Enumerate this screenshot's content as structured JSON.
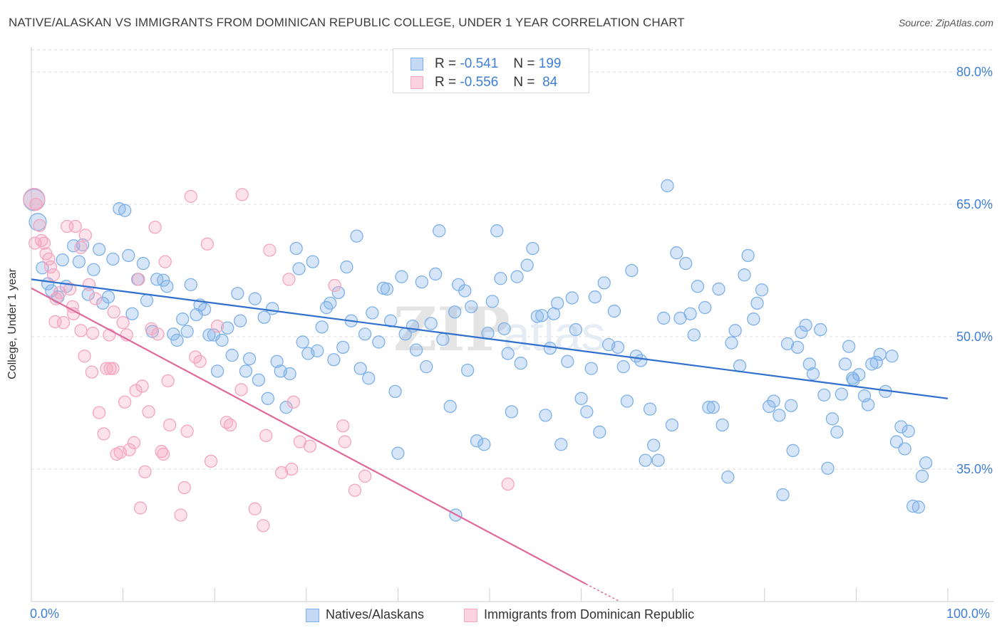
{
  "chart_data": {
    "type": "scatter",
    "title": "NATIVE/ALASKAN VS IMMIGRANTS FROM DOMINICAN REPUBLIC COLLEGE, UNDER 1 YEAR CORRELATION CHART",
    "source": "Source: ZipAtlas.com",
    "ylabel": "College, Under 1 year",
    "xlabel": "",
    "xlim": [
      0,
      100
    ],
    "ylim": [
      20,
      82.5
    ],
    "x_tick_labels": [
      {
        "value": 0,
        "label": "0.0%"
      },
      {
        "value": 100,
        "label": "100.0%"
      }
    ],
    "y_tick_labels": [
      {
        "value": 80,
        "label": "80.0%"
      },
      {
        "value": 65,
        "label": "65.0%"
      },
      {
        "value": 50,
        "label": "50.0%"
      },
      {
        "value": 35,
        "label": "35.0%"
      }
    ],
    "grid": true,
    "watermark": "ZIPatlas",
    "legend_stats": [
      {
        "r_label": "R =",
        "r_value": "-0.541",
        "n_label": "N =",
        "n_value": "199"
      },
      {
        "r_label": "R =",
        "r_value": "-0.556",
        "n_label": "N =",
        "n_value": "84"
      }
    ],
    "series": [
      {
        "name": "Natives/Alaskans",
        "color": "#7eb1e8",
        "line_color": "#2f6fce",
        "trend": {
          "x": [
            0,
            100
          ],
          "y": [
            56.5,
            43.0
          ]
        },
        "points": [
          [
            0.3,
            65.5
          ],
          [
            0.7,
            63.0
          ],
          [
            1.2,
            57.8
          ],
          [
            1.8,
            56.0
          ],
          [
            2.2,
            55.2
          ],
          [
            2.9,
            54.5
          ],
          [
            3.4,
            58.7
          ],
          [
            3.8,
            55.7
          ],
          [
            4.6,
            60.3
          ],
          [
            5.2,
            58.5
          ],
          [
            5.6,
            60.4
          ],
          [
            6.2,
            54.8
          ],
          [
            6.8,
            57.6
          ],
          [
            7.4,
            59.9
          ],
          [
            7.8,
            53.8
          ],
          [
            8.4,
            54.5
          ],
          [
            8.9,
            58.8
          ],
          [
            9.6,
            64.5
          ],
          [
            10.2,
            64.3
          ],
          [
            10.6,
            59.2
          ],
          [
            11.0,
            52.6
          ],
          [
            11.6,
            56.5
          ],
          [
            12.2,
            58.3
          ],
          [
            12.6,
            54.1
          ],
          [
            13.2,
            50.6
          ],
          [
            13.7,
            56.5
          ],
          [
            14.4,
            56.4
          ],
          [
            14.8,
            55.7
          ],
          [
            15.5,
            50.3
          ],
          [
            15.9,
            49.6
          ],
          [
            16.5,
            52.0
          ],
          [
            17.0,
            50.6
          ],
          [
            17.4,
            55.9
          ],
          [
            18.0,
            52.5
          ],
          [
            18.4,
            53.6
          ],
          [
            18.9,
            53.1
          ],
          [
            19.4,
            50.2
          ],
          [
            19.9,
            50.2
          ],
          [
            20.3,
            46.1
          ],
          [
            20.8,
            49.6
          ],
          [
            21.4,
            51.0
          ],
          [
            21.9,
            47.9
          ],
          [
            22.5,
            54.9
          ],
          [
            22.8,
            51.8
          ],
          [
            23.4,
            46.1
          ],
          [
            23.8,
            47.5
          ],
          [
            24.4,
            54.3
          ],
          [
            24.8,
            45.1
          ],
          [
            25.4,
            52.2
          ],
          [
            25.8,
            43.0
          ],
          [
            26.3,
            53.2
          ],
          [
            26.8,
            47.2
          ],
          [
            27.2,
            46.1
          ],
          [
            27.8,
            42.0
          ],
          [
            28.2,
            45.8
          ],
          [
            28.9,
            60.0
          ],
          [
            29.2,
            57.7
          ],
          [
            29.6,
            49.4
          ],
          [
            30.2,
            48.1
          ],
          [
            30.7,
            58.5
          ],
          [
            31.2,
            48.4
          ],
          [
            31.7,
            51.1
          ],
          [
            32.2,
            53.3
          ],
          [
            32.6,
            53.8
          ],
          [
            33.0,
            47.4
          ],
          [
            33.5,
            55.0
          ],
          [
            34.0,
            48.8
          ],
          [
            34.4,
            57.9
          ],
          [
            34.9,
            51.8
          ],
          [
            35.5,
            61.4
          ],
          [
            35.9,
            46.4
          ],
          [
            36.4,
            50.3
          ],
          [
            36.8,
            45.3
          ],
          [
            37.2,
            52.7
          ],
          [
            37.9,
            49.4
          ],
          [
            38.4,
            55.5
          ],
          [
            38.8,
            55.4
          ],
          [
            39.2,
            51.8
          ],
          [
            39.7,
            43.8
          ],
          [
            40.0,
            36.8
          ],
          [
            40.4,
            56.8
          ],
          [
            40.8,
            50.3
          ],
          [
            41.6,
            51.2
          ],
          [
            42.0,
            48.5
          ],
          [
            42.6,
            56.2
          ],
          [
            43.1,
            46.6
          ],
          [
            43.6,
            51.5
          ],
          [
            44.1,
            57.1
          ],
          [
            44.5,
            62.0
          ],
          [
            44.9,
            49.7
          ],
          [
            45.7,
            42.1
          ],
          [
            46.2,
            52.8
          ],
          [
            46.6,
            55.9
          ],
          [
            47.3,
            55.2
          ],
          [
            47.6,
            46.2
          ],
          [
            48.0,
            53.4
          ],
          [
            48.6,
            38.2
          ],
          [
            49.4,
            37.8
          ],
          [
            49.8,
            50.4
          ],
          [
            50.3,
            54.0
          ],
          [
            50.8,
            62.0
          ],
          [
            51.2,
            56.6
          ],
          [
            51.6,
            50.9
          ],
          [
            52.0,
            48.1
          ],
          [
            52.4,
            41.5
          ],
          [
            53.0,
            56.8
          ],
          [
            53.4,
            47.0
          ],
          [
            54.1,
            58.1
          ],
          [
            54.7,
            60.0
          ],
          [
            55.2,
            52.3
          ],
          [
            55.7,
            52.4
          ],
          [
            56.1,
            41.1
          ],
          [
            56.6,
            48.7
          ],
          [
            57.0,
            52.6
          ],
          [
            57.4,
            53.8
          ],
          [
            57.8,
            37.8
          ],
          [
            58.5,
            47.2
          ],
          [
            59.0,
            54.4
          ],
          [
            59.4,
            50.8
          ],
          [
            60.0,
            43.0
          ],
          [
            60.6,
            41.5
          ],
          [
            61.1,
            46.4
          ],
          [
            61.5,
            54.5
          ],
          [
            62.0,
            39.2
          ],
          [
            62.5,
            56.1
          ],
          [
            63.0,
            49.1
          ],
          [
            63.6,
            52.9
          ],
          [
            64.0,
            48.8
          ],
          [
            64.6,
            46.6
          ],
          [
            65.0,
            42.7
          ],
          [
            65.5,
            57.5
          ],
          [
            66.0,
            47.8
          ],
          [
            66.5,
            47.3
          ],
          [
            67.0,
            36.0
          ],
          [
            67.5,
            41.8
          ],
          [
            67.9,
            37.7
          ],
          [
            68.4,
            36.0
          ],
          [
            69.0,
            52.1
          ],
          [
            69.4,
            67.1
          ],
          [
            69.9,
            40.0
          ],
          [
            70.4,
            59.5
          ],
          [
            70.8,
            52.1
          ],
          [
            71.4,
            58.3
          ],
          [
            71.9,
            52.6
          ],
          [
            72.3,
            50.2
          ],
          [
            72.7,
            55.7
          ],
          [
            73.5,
            53.3
          ],
          [
            73.9,
            42.0
          ],
          [
            74.4,
            42.0
          ],
          [
            75.0,
            55.4
          ],
          [
            75.4,
            40.0
          ],
          [
            76.0,
            34.1
          ],
          [
            76.4,
            49.3
          ],
          [
            76.8,
            50.7
          ],
          [
            77.3,
            46.7
          ],
          [
            77.8,
            57.0
          ],
          [
            78.2,
            59.2
          ],
          [
            78.8,
            52.0
          ],
          [
            79.2,
            53.8
          ],
          [
            79.7,
            55.3
          ],
          [
            80.5,
            42.1
          ],
          [
            81.0,
            42.7
          ],
          [
            81.6,
            41.1
          ],
          [
            82.0,
            32.1
          ],
          [
            82.5,
            49.2
          ],
          [
            82.9,
            42.2
          ],
          [
            83.6,
            48.8
          ],
          [
            84.0,
            50.5
          ],
          [
            84.5,
            51.3
          ],
          [
            84.9,
            46.9
          ],
          [
            85.3,
            45.8
          ],
          [
            86.1,
            50.8
          ],
          [
            86.5,
            43.4
          ],
          [
            86.9,
            35.1
          ],
          [
            87.4,
            40.7
          ],
          [
            87.9,
            39.2
          ],
          [
            88.4,
            43.5
          ],
          [
            88.8,
            46.9
          ],
          [
            89.2,
            48.9
          ],
          [
            89.7,
            45.1
          ],
          [
            90.3,
            45.7
          ],
          [
            90.9,
            43.3
          ],
          [
            91.3,
            42.3
          ],
          [
            91.7,
            46.9
          ],
          [
            92.2,
            47.1
          ],
          [
            92.6,
            48.0
          ],
          [
            93.2,
            43.8
          ],
          [
            93.9,
            47.8
          ],
          [
            94.4,
            38.1
          ],
          [
            94.9,
            39.8
          ],
          [
            95.3,
            37.3
          ],
          [
            95.7,
            39.3
          ],
          [
            96.2,
            30.8
          ],
          [
            96.8,
            30.7
          ],
          [
            97.2,
            34.2
          ],
          [
            97.6,
            35.7
          ],
          [
            89.6,
            45.3
          ],
          [
            83.1,
            37.1
          ],
          [
            46.3,
            29.8
          ]
        ]
      },
      {
        "name": "Immigrants from Dominican Republic",
        "color": "#f5a5bf",
        "line_color": "#e0689b",
        "trend": {
          "x": [
            0,
            60.5
          ],
          "y": [
            55.5,
            22.0
          ]
        },
        "trend_dashed": {
          "x": [
            60.5,
            64.2
          ],
          "y": [
            22.0,
            20.0
          ]
        },
        "points": [
          [
            0.3,
            65.6
          ],
          [
            0.5,
            65.0
          ],
          [
            0.9,
            62.6
          ],
          [
            1.1,
            60.9
          ],
          [
            1.4,
            60.6
          ],
          [
            1.6,
            59.4
          ],
          [
            1.9,
            58.8
          ],
          [
            2.1,
            57.9
          ],
          [
            2.4,
            57.0
          ],
          [
            2.7,
            54.3
          ],
          [
            2.6,
            51.7
          ],
          [
            3.1,
            55.0
          ],
          [
            3.5,
            51.6
          ],
          [
            3.9,
            62.5
          ],
          [
            4.2,
            55.4
          ],
          [
            4.6,
            52.6
          ],
          [
            4.5,
            53.4
          ],
          [
            4.8,
            62.5
          ],
          [
            5.4,
            60.1
          ],
          [
            5.4,
            50.7
          ],
          [
            5.8,
            47.8
          ],
          [
            5.9,
            61.5
          ],
          [
            6.3,
            55.9
          ],
          [
            6.6,
            46.0
          ],
          [
            6.7,
            50.4
          ],
          [
            7.0,
            54.3
          ],
          [
            7.4,
            41.4
          ],
          [
            7.9,
            39.0
          ],
          [
            8.2,
            46.4
          ],
          [
            8.5,
            50.2
          ],
          [
            8.6,
            46.4
          ],
          [
            8.9,
            46.4
          ],
          [
            9.0,
            52.8
          ],
          [
            9.3,
            36.7
          ],
          [
            9.7,
            36.9
          ],
          [
            10.0,
            51.6
          ],
          [
            10.2,
            42.6
          ],
          [
            10.4,
            50.2
          ],
          [
            10.7,
            37.2
          ],
          [
            11.2,
            38.0
          ],
          [
            11.4,
            43.9
          ],
          [
            11.7,
            56.5
          ],
          [
            11.9,
            30.6
          ],
          [
            12.1,
            44.4
          ],
          [
            12.4,
            34.7
          ],
          [
            12.8,
            41.5
          ],
          [
            13.1,
            50.9
          ],
          [
            13.5,
            62.4
          ],
          [
            13.8,
            50.3
          ],
          [
            14.2,
            37.0
          ],
          [
            14.4,
            36.7
          ],
          [
            14.6,
            58.5
          ],
          [
            14.9,
            45.0
          ],
          [
            15.1,
            40.0
          ],
          [
            16.3,
            29.8
          ],
          [
            16.7,
            32.9
          ],
          [
            17.0,
            39.3
          ],
          [
            17.4,
            65.9
          ],
          [
            17.9,
            47.7
          ],
          [
            18.4,
            47.2
          ],
          [
            19.2,
            60.5
          ],
          [
            19.6,
            35.9
          ],
          [
            20.3,
            51.2
          ],
          [
            21.3,
            40.3
          ],
          [
            21.7,
            40.0
          ],
          [
            22.9,
            44.0
          ],
          [
            23.0,
            66.1
          ],
          [
            24.4,
            30.5
          ],
          [
            25.3,
            28.6
          ],
          [
            25.6,
            38.8
          ],
          [
            26.0,
            59.8
          ],
          [
            27.3,
            34.6
          ],
          [
            28.1,
            56.5
          ],
          [
            28.4,
            35.0
          ],
          [
            28.6,
            42.6
          ],
          [
            29.3,
            38.1
          ],
          [
            30.4,
            37.6
          ],
          [
            33.1,
            55.8
          ],
          [
            34.0,
            39.9
          ],
          [
            34.2,
            38.1
          ],
          [
            35.3,
            32.6
          ],
          [
            36.4,
            34.2
          ],
          [
            52.0,
            33.3
          ],
          [
            0.4,
            60.6
          ]
        ]
      }
    ]
  }
}
